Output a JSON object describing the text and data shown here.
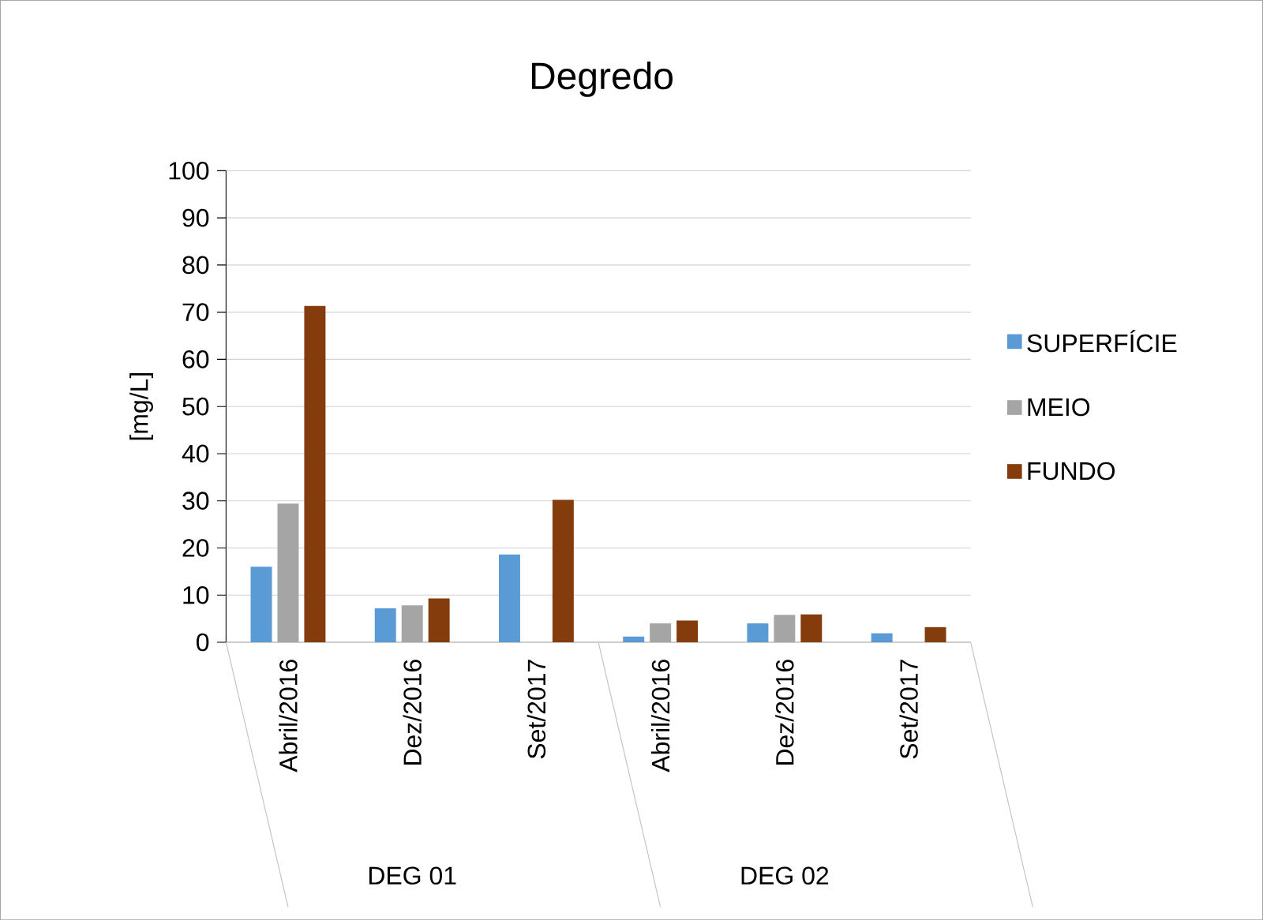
{
  "chart_data": {
    "type": "bar",
    "title": "Degredo",
    "ylabel": "[mg/L]",
    "categories": [
      "Abril/2016",
      "Dez/2016",
      "Set/2017",
      "Abril/2016",
      "Dez/2016",
      "Set/2017"
    ],
    "annotations": [
      "DEG 01",
      "DEG 02"
    ],
    "series": [
      {
        "name": "SUPERFÍCIE",
        "color": "#5b9bd5",
        "values": [
          16.0,
          7.2,
          18.6,
          1.2,
          4.0,
          1.9
        ]
      },
      {
        "name": "MEIO",
        "color": "#a5a5a5",
        "values": [
          29.4,
          7.8,
          null,
          4.0,
          5.8,
          null
        ]
      },
      {
        "name": "FUNDO",
        "color": "#843c0c",
        "values": [
          71.3,
          9.3,
          30.2,
          4.6,
          5.9,
          3.2
        ]
      }
    ],
    "ylim": [
      0,
      100
    ],
    "yticks": [
      0,
      10,
      20,
      30,
      40,
      50,
      60,
      70,
      80,
      90,
      100
    ],
    "grid": "y",
    "legend": "right"
  }
}
